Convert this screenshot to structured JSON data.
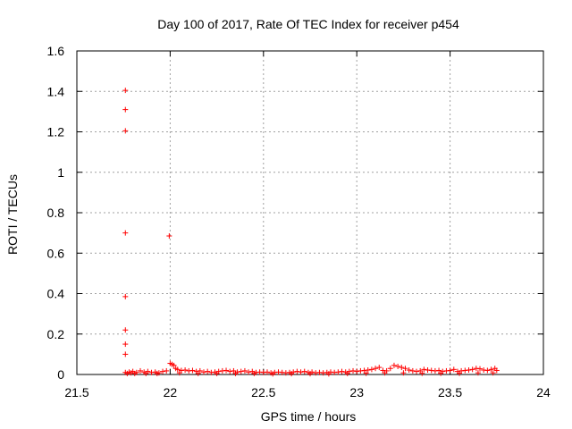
{
  "chart_data": {
    "type": "scatter",
    "title": "Day 100 of 2017, Rate Of TEC Index for receiver p454",
    "xlabel": "GPS time / hours",
    "ylabel": "ROTI / TECUs",
    "xlim": [
      21.5,
      24
    ],
    "ylim": [
      0,
      1.6
    ],
    "x_ticks": [
      "21.5",
      "22",
      "22.5",
      "23",
      "23.5",
      "24"
    ],
    "y_ticks": [
      "0",
      "0.2",
      "0.4",
      "0.6",
      "0.8",
      "1",
      "1.2",
      "1.4",
      "1.6"
    ],
    "x_tick_values": [
      21.5,
      22,
      22.5,
      23,
      23.5,
      24
    ],
    "y_tick_values": [
      0,
      0.2,
      0.4,
      0.6,
      0.8,
      1.0,
      1.2,
      1.4,
      1.6
    ],
    "grid": true,
    "marker": "+",
    "marker_color": "#ff0000",
    "series": [
      {
        "points": [
          [
            21.76,
            1.405
          ],
          [
            21.76,
            1.31
          ],
          [
            21.76,
            1.205
          ],
          [
            21.76,
            0.7
          ],
          [
            21.76,
            0.385
          ],
          [
            21.76,
            0.22
          ],
          [
            21.76,
            0.15
          ],
          [
            21.76,
            0.1
          ],
          [
            21.995,
            0.685
          ],
          [
            21.76,
            0.01
          ],
          [
            21.77,
            0.005
          ],
          [
            21.78,
            0.012
          ],
          [
            21.79,
            0.008
          ],
          [
            21.8,
            0.015
          ],
          [
            21.82,
            0.01
          ],
          [
            21.84,
            0.018
          ],
          [
            21.86,
            0.012
          ],
          [
            21.88,
            0.015
          ],
          [
            21.9,
            0.01
          ],
          [
            21.92,
            0.012
          ],
          [
            21.94,
            0.008
          ],
          [
            21.96,
            0.015
          ],
          [
            21.98,
            0.018
          ],
          [
            22.0,
            0.055
          ],
          [
            22.01,
            0.05
          ],
          [
            22.02,
            0.045
          ],
          [
            22.03,
            0.03
          ],
          [
            22.04,
            0.025
          ],
          [
            22.06,
            0.02
          ],
          [
            22.08,
            0.022
          ],
          [
            22.1,
            0.018
          ],
          [
            22.12,
            0.02
          ],
          [
            22.14,
            0.015
          ],
          [
            22.16,
            0.018
          ],
          [
            22.18,
            0.012
          ],
          [
            22.2,
            0.015
          ],
          [
            22.22,
            0.01
          ],
          [
            22.24,
            0.012
          ],
          [
            22.26,
            0.015
          ],
          [
            22.28,
            0.018
          ],
          [
            22.3,
            0.02
          ],
          [
            22.32,
            0.015
          ],
          [
            22.34,
            0.018
          ],
          [
            22.36,
            0.012
          ],
          [
            22.38,
            0.015
          ],
          [
            22.4,
            0.018
          ],
          [
            22.42,
            0.012
          ],
          [
            22.44,
            0.015
          ],
          [
            22.46,
            0.01
          ],
          [
            22.48,
            0.012
          ],
          [
            22.5,
            0.01
          ],
          [
            22.52,
            0.012
          ],
          [
            22.54,
            0.008
          ],
          [
            22.56,
            0.01
          ],
          [
            22.58,
            0.012
          ],
          [
            22.6,
            0.01
          ],
          [
            22.62,
            0.008
          ],
          [
            22.64,
            0.01
          ],
          [
            22.66,
            0.012
          ],
          [
            22.68,
            0.015
          ],
          [
            22.7,
            0.012
          ],
          [
            22.72,
            0.015
          ],
          [
            22.74,
            0.01
          ],
          [
            22.76,
            0.012
          ],
          [
            22.78,
            0.008
          ],
          [
            22.8,
            0.01
          ],
          [
            22.82,
            0.008
          ],
          [
            22.84,
            0.01
          ],
          [
            22.86,
            0.012
          ],
          [
            22.88,
            0.01
          ],
          [
            22.9,
            0.012
          ],
          [
            22.92,
            0.015
          ],
          [
            22.94,
            0.012
          ],
          [
            22.96,
            0.015
          ],
          [
            22.98,
            0.018
          ],
          [
            23.0,
            0.015
          ],
          [
            23.02,
            0.018
          ],
          [
            23.04,
            0.02
          ],
          [
            23.06,
            0.022
          ],
          [
            23.08,
            0.025
          ],
          [
            23.1,
            0.03
          ],
          [
            23.12,
            0.035
          ],
          [
            23.14,
            0.02
          ],
          [
            23.16,
            0.018
          ],
          [
            23.18,
            0.03
          ],
          [
            23.2,
            0.045
          ],
          [
            23.22,
            0.04
          ],
          [
            23.24,
            0.035
          ],
          [
            23.26,
            0.03
          ],
          [
            23.28,
            0.022
          ],
          [
            23.3,
            0.018
          ],
          [
            23.32,
            0.015
          ],
          [
            23.34,
            0.018
          ],
          [
            23.36,
            0.025
          ],
          [
            23.38,
            0.022
          ],
          [
            23.4,
            0.02
          ],
          [
            23.42,
            0.018
          ],
          [
            23.44,
            0.02
          ],
          [
            23.46,
            0.015
          ],
          [
            23.48,
            0.018
          ],
          [
            23.5,
            0.02
          ],
          [
            23.52,
            0.025
          ],
          [
            23.54,
            0.015
          ],
          [
            23.56,
            0.018
          ],
          [
            23.58,
            0.02
          ],
          [
            23.6,
            0.022
          ],
          [
            23.62,
            0.025
          ],
          [
            23.64,
            0.03
          ],
          [
            23.66,
            0.028
          ],
          [
            23.68,
            0.022
          ],
          [
            23.7,
            0.02
          ],
          [
            23.72,
            0.025
          ],
          [
            23.74,
            0.03
          ],
          [
            23.75,
            0.02
          ],
          [
            21.81,
            0.005
          ],
          [
            21.87,
            0.005
          ],
          [
            21.93,
            0.005
          ],
          [
            22.05,
            0.008
          ],
          [
            22.15,
            0.005
          ],
          [
            22.25,
            0.005
          ],
          [
            22.35,
            0.005
          ],
          [
            22.45,
            0.005
          ],
          [
            22.55,
            0.003
          ],
          [
            22.65,
            0.004
          ],
          [
            22.75,
            0.004
          ],
          [
            22.85,
            0.003
          ],
          [
            22.95,
            0.005
          ],
          [
            23.05,
            0.006
          ],
          [
            23.15,
            0.008
          ],
          [
            23.25,
            0.008
          ],
          [
            23.35,
            0.006
          ],
          [
            23.45,
            0.006
          ],
          [
            23.55,
            0.006
          ],
          [
            23.65,
            0.008
          ],
          [
            23.73,
            0.008
          ]
        ]
      }
    ]
  }
}
